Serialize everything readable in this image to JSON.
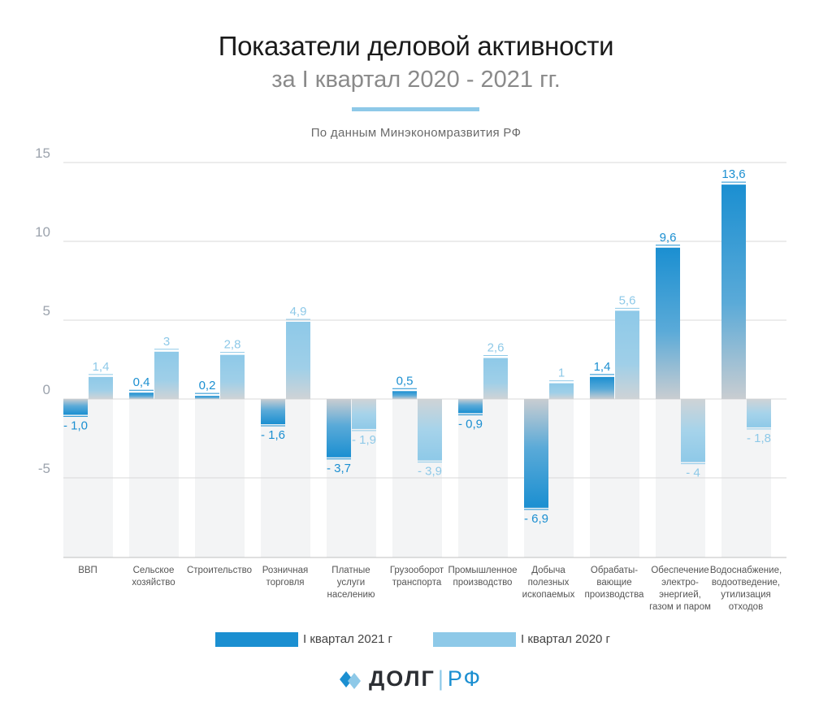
{
  "header": {
    "title": "Показатели деловой активности",
    "subtitle": "за I квартал 2020 - 2021 гг.",
    "source": "По данным Минэкономразвития РФ"
  },
  "colors": {
    "series2021": "#1b8fd1",
    "series2020": "#8ec9e8",
    "grid": "#d9d9d9",
    "axis_text": "#9ca3ad"
  },
  "chart_data": {
    "type": "bar",
    "title": "Показатели деловой активности за I квартал 2020 - 2021 гг.",
    "ylim": [
      -10,
      15
    ],
    "yticks": [
      15,
      10,
      5,
      0,
      -5
    ],
    "ytick_labels": [
      "15",
      "10",
      "5",
      "0",
      "-5"
    ],
    "categories": [
      [
        "ВВП"
      ],
      [
        "Сельское",
        "хозяйство"
      ],
      [
        "Строительство"
      ],
      [
        "Розничная",
        "торговля"
      ],
      [
        "Платные",
        "услуги",
        "населению"
      ],
      [
        "Грузооборот",
        "транспорта"
      ],
      [
        "Промышленное",
        "производство"
      ],
      [
        "Добыча",
        "полезных",
        "ископаемых"
      ],
      [
        "Обрабаты-",
        "вающие",
        "производства"
      ],
      [
        "Обеспечение",
        "электро-",
        "энергией,",
        "газом и паром"
      ],
      [
        "Водоснабжение,",
        "водоотведение,",
        "утилизация",
        "отходов"
      ]
    ],
    "series": [
      {
        "name": "I квартал 2021 г",
        "values": [
          -1.0,
          0.4,
          0.2,
          -1.6,
          -3.7,
          0.5,
          -0.9,
          -6.9,
          1.4,
          9.6,
          13.6
        ],
        "labels": [
          "- 1,0",
          "0,4",
          "0,2",
          "- 1,6",
          "- 3,7",
          "0,5",
          "- 0,9",
          "- 6,9",
          "1,4",
          "9,6",
          "13,6"
        ]
      },
      {
        "name": "I квартал 2020 г",
        "values": [
          1.4,
          3.0,
          2.8,
          4.9,
          -1.9,
          -3.9,
          2.6,
          1.0,
          5.6,
          -4.0,
          -1.8
        ],
        "labels": [
          "1,4",
          "3",
          "2,8",
          "4,9",
          "- 1,9",
          "- 3,9",
          "2,6",
          "1",
          "5,6",
          "- 4",
          "- 1,8"
        ]
      }
    ]
  },
  "legend": {
    "item2021": "I квартал 2021 г",
    "item2020": "I квартал 2020 г"
  },
  "logo": {
    "part1": "ДОЛГ",
    "separator": "|",
    "part2": "РФ"
  }
}
